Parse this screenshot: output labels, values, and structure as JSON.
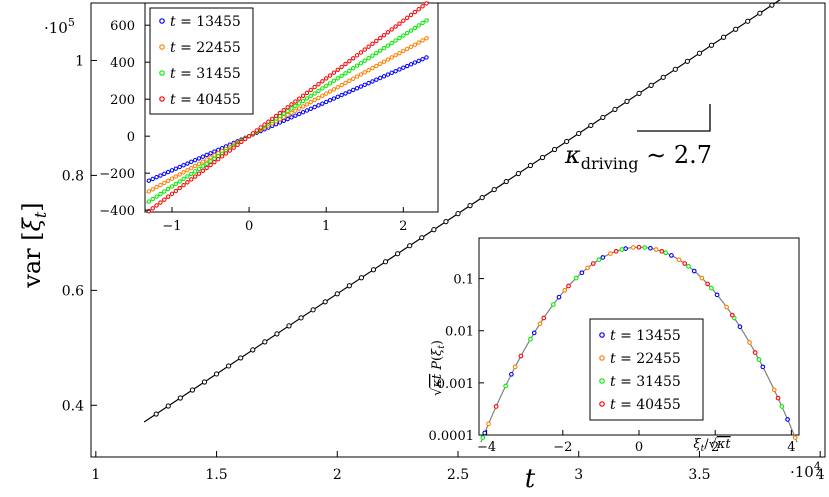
{
  "chart_data": [
    {
      "type": "scatter",
      "title": "",
      "xlabel": "t",
      "ylabel": "var [ξ_t]",
      "x_scale_label": "·10^4",
      "y_scale_label": "·10^5",
      "xlim": [
        0.98,
        4.02
      ],
      "ylim": [
        0.31,
        1.1
      ],
      "xticks": [
        1,
        1.5,
        2,
        2.5,
        3,
        3.5,
        4
      ],
      "xtick_labels": [
        "1",
        "1.5",
        "2",
        "2.5",
        "3",
        "3.5",
        "4"
      ],
      "yticks": [
        0.4,
        0.6,
        0.8,
        1
      ],
      "ytick_labels": [
        "0.4",
        "0.6",
        "0.8",
        "1"
      ],
      "grid": false,
      "marker_color": "#000000",
      "series": [
        {
          "name": "",
          "x_start": 1.25,
          "x_step": 0.05,
          "n": 56,
          "slope": 0.279,
          "intercept": 0.036
        }
      ],
      "fit_line": {
        "x": [
          1.2,
          3.98
        ],
        "slope": 0.279,
        "intercept": 0.036,
        "color": "#000000"
      },
      "annotation": {
        "text": "κ_driving ∼ 2.7",
        "base": "κ",
        "subscript": "driving",
        "rest": " ∼ 2.7"
      }
    },
    {
      "type": "scatter",
      "title": "",
      "xlabel": "",
      "ylabel": "",
      "xlim": [
        -1.35,
        2.45
      ],
      "ylim": [
        -410,
        720
      ],
      "xticks": [
        -1,
        0,
        1,
        2
      ],
      "xtick_labels": [
        "−1",
        "0",
        "1",
        "2"
      ],
      "yticks": [
        -400,
        -200,
        0,
        200,
        400,
        600
      ],
      "ytick_labels": [
        "−400",
        "−200",
        "0",
        "200",
        "400",
        "600"
      ],
      "grid": false,
      "legend_position": "top-left",
      "x_start": -1.3,
      "x_step": 0.05,
      "n": 73,
      "series": [
        {
          "name": "t = 13455",
          "legend_label": "t",
          "legend_value": "= 13455",
          "slope": 185,
          "color": "#0000ff"
        },
        {
          "name": "t = 22455",
          "legend_label": "t",
          "legend_value": "= 22455",
          "slope": 230,
          "color": "#ff8000"
        },
        {
          "name": "t = 31455",
          "legend_label": "t",
          "legend_value": "= 31455",
          "slope": 272,
          "color": "#00ee00"
        },
        {
          "name": "t = 40455",
          "legend_label": "t",
          "legend_value": "= 40455",
          "slope": 312,
          "color": "#ff0000"
        }
      ],
      "fit_color": "#808080"
    },
    {
      "type": "scatter",
      "title": "",
      "xlabel": "ξ_t/√(κt)",
      "ylabel": "√(κt) P(ξ_t)",
      "yscale": "log",
      "xlim": [
        -4.2,
        4.2
      ],
      "ylim": [
        0.0001,
        0.6
      ],
      "xticks": [
        -4,
        -2,
        0,
        2,
        4
      ],
      "xtick_labels": [
        "−4",
        "−2",
        "0",
        "2",
        "4"
      ],
      "yticks": [
        0.0001,
        0.001,
        0.01,
        0.1
      ],
      "ytick_labels": [
        "0.0001",
        "0.001",
        "0.01",
        "0.1"
      ],
      "grid": false,
      "legend_position": "bottom-right",
      "curve": {
        "type": "gaussian",
        "sigma": 1.0,
        "amplitude": 0.399,
        "color": "#808080"
      },
      "series": [
        {
          "name": "t = 13455",
          "legend_label": "t",
          "legend_value": "= 13455",
          "color": "#0000ff",
          "x": [
            -4.05,
            -3.35,
            -2.75,
            -2.1,
            -1.5,
            -0.95,
            -0.35,
            0.3,
            0.85,
            1.45,
            2.05,
            2.65,
            3.25,
            3.9
          ]
        },
        {
          "name": "t = 22455",
          "legend_label": "t",
          "legend_value": "= 22455",
          "color": "#ff8000",
          "x": [
            -3.95,
            -3.25,
            -2.6,
            -1.95,
            -1.35,
            -0.75,
            -0.15,
            0.45,
            1.05,
            1.65,
            2.3,
            2.9,
            3.55,
            4.1
          ]
        },
        {
          "name": "t = 31455",
          "legend_label": "t",
          "legend_value": "= 31455",
          "color": "#00ee00",
          "x": [
            -4.1,
            -3.5,
            -2.85,
            -2.25,
            -1.65,
            -1.05,
            -0.45,
            0.15,
            0.7,
            1.3,
            1.9,
            2.5,
            3.15,
            3.75
          ]
        },
        {
          "name": "t = 40455",
          "legend_label": "t",
          "legend_value": "= 40455",
          "color": "#ff0000",
          "x": [
            -3.75,
            -3.1,
            -2.5,
            -1.85,
            -1.2,
            -0.6,
            0.0,
            0.6,
            1.2,
            1.8,
            2.45,
            3.05,
            3.65
          ]
        }
      ]
    }
  ]
}
